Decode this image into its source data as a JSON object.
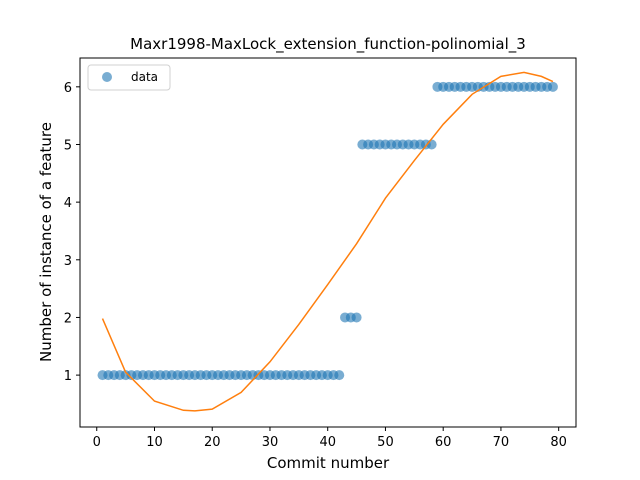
{
  "chart_data": {
    "type": "scatter",
    "title": "Maxr1998-MaxLock_extension_function-polinomial_3",
    "xlabel": "Commit number",
    "ylabel": "Number of instance of a feature",
    "xlim": [
      -2.9,
      83
    ],
    "ylim": [
      0.1,
      6.5
    ],
    "xticks": [
      0,
      10,
      20,
      30,
      40,
      50,
      60,
      70,
      80
    ],
    "yticks": [
      1,
      2,
      3,
      4,
      5,
      6
    ],
    "grid": false,
    "legend": {
      "position": "top-left",
      "entries": [
        "data"
      ]
    },
    "colors": {
      "data": "#1f77b4",
      "fit": "#ff7f0e"
    },
    "series": [
      {
        "name": "data",
        "kind": "scatter",
        "x": [
          1,
          2,
          3,
          4,
          5,
          6,
          7,
          8,
          9,
          10,
          11,
          12,
          13,
          14,
          15,
          16,
          17,
          18,
          19,
          20,
          21,
          22,
          23,
          24,
          25,
          26,
          27,
          28,
          29,
          30,
          31,
          32,
          33,
          34,
          35,
          36,
          37,
          38,
          39,
          40,
          41,
          42,
          43,
          44,
          45,
          46,
          47,
          48,
          49,
          50,
          51,
          52,
          53,
          54,
          55,
          56,
          57,
          58,
          59,
          60,
          61,
          62,
          63,
          64,
          65,
          66,
          67,
          68,
          69,
          70,
          71,
          72,
          73,
          74,
          75,
          76,
          77,
          78,
          79
        ],
        "y": [
          1,
          1,
          1,
          1,
          1,
          1,
          1,
          1,
          1,
          1,
          1,
          1,
          1,
          1,
          1,
          1,
          1,
          1,
          1,
          1,
          1,
          1,
          1,
          1,
          1,
          1,
          1,
          1,
          1,
          1,
          1,
          1,
          1,
          1,
          1,
          1,
          1,
          1,
          1,
          1,
          1,
          1,
          2,
          2,
          2,
          5,
          5,
          5,
          5,
          5,
          5,
          5,
          5,
          5,
          5,
          5,
          5,
          5,
          6,
          6,
          6,
          6,
          6,
          6,
          6,
          6,
          6,
          6,
          6,
          6,
          6,
          6,
          6,
          6,
          6,
          6,
          6,
          6,
          6
        ]
      },
      {
        "kind": "line",
        "x": [
          1,
          5,
          10,
          15,
          17,
          20,
          25,
          30,
          35,
          40,
          45,
          50,
          55,
          60,
          65,
          70,
          74,
          77,
          79
        ],
        "y": [
          1.98,
          1.05,
          0.55,
          0.39,
          0.38,
          0.41,
          0.7,
          1.23,
          1.88,
          2.57,
          3.28,
          4.07,
          4.72,
          5.35,
          5.87,
          6.18,
          6.25,
          6.18,
          6.09
        ]
      }
    ]
  }
}
